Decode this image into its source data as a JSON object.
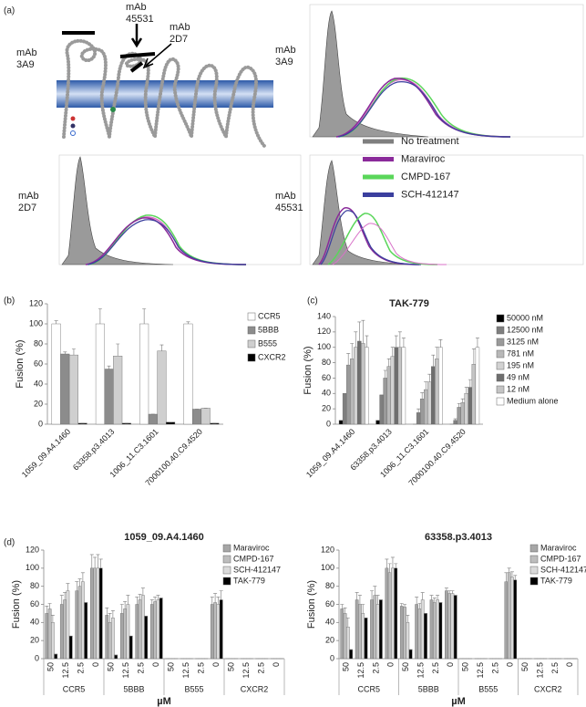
{
  "panels": [
    "(a)",
    "(b)",
    "(c)",
    "(d)"
  ],
  "figure_a": {
    "diagram_labels": [
      [
        "mAb",
        "3A9"
      ],
      [
        "mAb",
        "45531"
      ],
      [
        "mAb",
        "2D7"
      ]
    ],
    "histogram_labels": [
      [
        "mAb",
        "3A9"
      ],
      [
        "mAb",
        "2D7"
      ],
      [
        "mAb",
        "45531"
      ]
    ],
    "legend": [
      {
        "name": "No treatment",
        "color": "#7f7f7f"
      },
      {
        "name": "Maraviroc",
        "color": "#8a2a9a"
      },
      {
        "name": "CMPD-167",
        "color": "#5ad65a"
      },
      {
        "name": "SCH-412147",
        "color": "#3b3f9e"
      }
    ]
  },
  "chart_data": [
    {
      "type": "bar",
      "y_label": "Fusion (%)",
      "categories": [
        "1059_09.A4.1460",
        "63358.p3.4013",
        "1006_11.C3.1601",
        "7000100.40.C9.4520"
      ],
      "series": [
        {
          "name": "CCR5",
          "color": "#ffffff",
          "values": [
            100,
            100,
            100,
            100
          ],
          "errors": [
            3,
            15,
            15,
            2
          ]
        },
        {
          "name": "5BBB",
          "color": "#8c8c8c",
          "values": [
            70,
            55,
            10,
            15
          ],
          "errors": [
            2,
            3,
            0,
            0
          ]
        },
        {
          "name": "B555",
          "color": "#cfcfcf",
          "values": [
            69,
            68,
            73,
            16
          ],
          "errors": [
            6,
            12,
            6,
            0
          ]
        },
        {
          "name": "CXCR2",
          "color": "#000000",
          "values": [
            1,
            1,
            2,
            1
          ],
          "errors": [
            0,
            0,
            0,
            0
          ]
        }
      ],
      "ylim": [
        0,
        120
      ],
      "yticks": [
        0,
        20,
        40,
        60,
        80,
        100,
        120
      ]
    },
    {
      "type": "bar",
      "title": "TAK-779",
      "y_label": "Fusion (%)",
      "categories": [
        "1059_09.A4.1460",
        "63358.p3.4013",
        "1006_11.C3.1601",
        "7000100.40.C9.4520"
      ],
      "series": [
        {
          "name": "50000  nM",
          "color": "#000000",
          "values": [
            5,
            5,
            0,
            0
          ],
          "errors": [
            0,
            0,
            0,
            0
          ]
        },
        {
          "name": "12500  nM",
          "color": "#7f7f7f",
          "values": [
            40,
            38,
            15,
            5
          ],
          "errors": [
            0,
            0,
            5,
            2
          ]
        },
        {
          "name": "3125  nM",
          "color": "#9a9a9a",
          "values": [
            77,
            60,
            33,
            22
          ],
          "errors": [
            15,
            10,
            8,
            5
          ]
        },
        {
          "name": "781  nM",
          "color": "#b8b8b8",
          "values": [
            85,
            75,
            45,
            28
          ],
          "errors": [
            20,
            10,
            10,
            5
          ]
        },
        {
          "name": "195  nM",
          "color": "#d2d2d2",
          "values": [
            100,
            88,
            55,
            40
          ],
          "errors": [
            20,
            12,
            10,
            8
          ]
        },
        {
          "name": "49  nM",
          "color": "#6e6e6e",
          "values": [
            108,
            100,
            75,
            48
          ],
          "errors": [
            25,
            15,
            15,
            10
          ]
        },
        {
          "name": "12  nM",
          "color": "#c4c4c4",
          "values": [
            105,
            100,
            85,
            78
          ],
          "errors": [
            30,
            20,
            15,
            20
          ]
        },
        {
          "name": "Medium alone",
          "color": "#ffffff",
          "values": [
            100,
            100,
            100,
            100
          ],
          "errors": [
            15,
            12,
            10,
            12
          ]
        }
      ],
      "ylim": [
        0,
        140
      ],
      "yticks": [
        0,
        20,
        40,
        60,
        80,
        100,
        120,
        140
      ]
    },
    {
      "type": "bar",
      "title": "1059_09.A4.1460",
      "y_label": "Fusion (%)",
      "x_label": "µM",
      "categories": [
        "50",
        "12.5",
        "2.5",
        "0",
        "50",
        "12.5",
        "2.5",
        "0",
        "50",
        "12.5",
        "2.5",
        "0",
        "50",
        "12.5",
        "2.5",
        "0"
      ],
      "groups": [
        "CCR5",
        "5BBB",
        "B555",
        "CXCR2"
      ],
      "series": [
        {
          "name": "Maraviroc",
          "color": "#a6a6a6",
          "values": [
            50,
            60,
            75,
            100,
            48,
            50,
            60,
            60,
            0,
            0,
            0,
            60,
            0,
            0,
            0,
            0
          ],
          "errors": [
            8,
            10,
            10,
            15,
            8,
            10,
            8,
            5,
            0,
            0,
            0,
            8,
            0,
            0,
            0,
            0
          ]
        },
        {
          "name": "CMPD-167",
          "color": "#bdbdbd",
          "values": [
            55,
            65,
            80,
            100,
            40,
            55,
            65,
            63,
            0,
            0,
            0,
            62,
            0,
            0,
            0,
            0
          ],
          "errors": [
            6,
            8,
            8,
            12,
            10,
            8,
            6,
            5,
            0,
            0,
            0,
            10,
            0,
            0,
            0,
            0
          ]
        },
        {
          "name": "SCH-412147",
          "color": "#dadada",
          "values": [
            40,
            75,
            85,
            100,
            45,
            60,
            70,
            65,
            0,
            0,
            0,
            60,
            0,
            0,
            0,
            0
          ],
          "errors": [
            8,
            8,
            10,
            15,
            8,
            10,
            8,
            5,
            0,
            0,
            0,
            8,
            0,
            0,
            0,
            0
          ]
        },
        {
          "name": "TAK-779",
          "color": "#000000",
          "values": [
            5,
            25,
            62,
            100,
            4,
            25,
            47,
            67,
            0,
            0,
            0,
            65,
            0,
            0,
            0,
            0
          ],
          "errors": [
            0,
            0,
            0,
            10,
            0,
            0,
            0,
            0,
            0,
            0,
            0,
            10,
            0,
            0,
            0,
            0
          ]
        }
      ],
      "ylim": [
        0,
        120
      ],
      "yticks": [
        0,
        20,
        40,
        60,
        80,
        100,
        120
      ]
    },
    {
      "type": "bar",
      "title": "63358.p3.4013",
      "y_label": "Fusion (%)",
      "x_label": "µM",
      "categories": [
        "50",
        "12.5",
        "2.5",
        "0",
        "50",
        "12.5",
        "2.5",
        "0",
        "50",
        "12.5",
        "2.5",
        "0",
        "50",
        "12.5",
        "2.5",
        "0"
      ],
      "groups": [
        "CCR5",
        "5BBB",
        "B555",
        "CXCR2"
      ],
      "series": [
        {
          "name": "Maraviroc",
          "color": "#a6a6a6",
          "values": [
            55,
            65,
            65,
            100,
            58,
            60,
            65,
            75,
            0,
            0,
            0,
            85,
            0,
            0,
            0,
            0
          ],
          "errors": [
            5,
            8,
            10,
            10,
            3,
            8,
            5,
            3,
            0,
            0,
            0,
            10,
            0,
            0,
            0,
            0
          ]
        },
        {
          "name": "CMPD-167",
          "color": "#bdbdbd",
          "values": [
            50,
            60,
            70,
            95,
            57,
            55,
            62,
            72,
            0,
            0,
            0,
            95,
            0,
            0,
            0,
            0
          ],
          "errors": [
            6,
            10,
            10,
            10,
            3,
            6,
            5,
            3,
            0,
            0,
            0,
            5,
            0,
            0,
            0,
            0
          ]
        },
        {
          "name": "SCH-412147",
          "color": "#dadada",
          "values": [
            35,
            50,
            60,
            100,
            40,
            65,
            65,
            72,
            0,
            0,
            0,
            90,
            0,
            0,
            0,
            0
          ],
          "errors": [
            10,
            10,
            10,
            12,
            8,
            8,
            5,
            3,
            0,
            0,
            0,
            6,
            0,
            0,
            0,
            0
          ]
        },
        {
          "name": "TAK-779",
          "color": "#000000",
          "values": [
            10,
            45,
            65,
            100,
            10,
            50,
            62,
            70,
            0,
            0,
            0,
            87,
            0,
            0,
            0,
            0
          ],
          "errors": [
            0,
            0,
            0,
            5,
            0,
            0,
            0,
            0,
            0,
            0,
            0,
            5,
            0,
            0,
            0,
            0
          ]
        }
      ],
      "ylim": [
        0,
        120
      ],
      "yticks": [
        0,
        20,
        40,
        60,
        80,
        100,
        120
      ]
    }
  ]
}
